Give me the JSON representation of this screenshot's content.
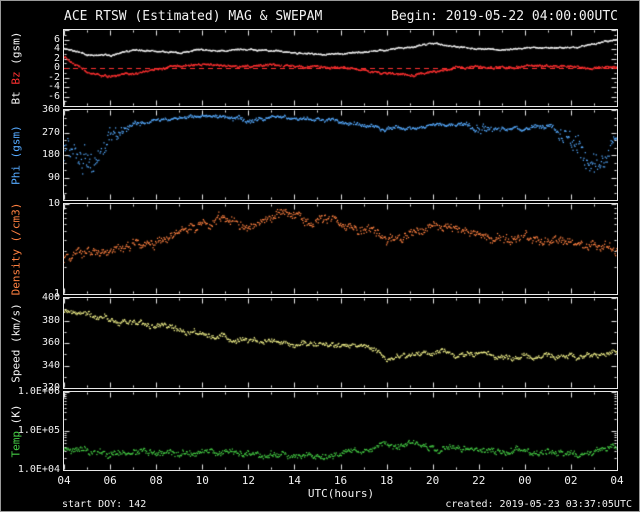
{
  "header": {
    "title": "ACE RTSW (Estimated) MAG & SWEPAM",
    "begin": "Begin: 2019-05-22 04:00:00UTC"
  },
  "footer": {
    "start_doy": "start DOY: 142",
    "created": "created: 2019-05-23 03:37:05UTC"
  },
  "x_axis": {
    "label": "UTC(hours)",
    "range": [
      4,
      28
    ],
    "tick_hours": [
      4,
      6,
      8,
      10,
      12,
      14,
      16,
      18,
      20,
      22,
      24,
      26,
      28
    ],
    "tick_labels": [
      "04",
      "06",
      "08",
      "10",
      "12",
      "14",
      "16",
      "18",
      "20",
      "22",
      "00",
      "02",
      "04"
    ]
  },
  "colors": {
    "background": "#000000",
    "frame": "#e8e8e8",
    "text": "#f2f2f2",
    "bt": "#f0f0f0",
    "bz": "#ff3030",
    "zero_line": "#ff3030",
    "phi": "#55aaff",
    "density": "#ff8040",
    "speed": "#eeee88",
    "temp": "#44cc44"
  },
  "chart_data": [
    {
      "id": "mag",
      "type": "scatter",
      "scale": "linear",
      "ylim": [
        -8,
        8
      ],
      "zero_line": true,
      "yticks": {
        "values": [
          6,
          4,
          2,
          0,
          -2,
          -4,
          -6
        ],
        "labels": [
          "6",
          "4",
          "2",
          "0",
          "-2",
          "-4",
          "-6"
        ],
        "major_step": 2,
        "minor_step": 1
      },
      "ylabel_parts": [
        {
          "text": "Bt",
          "color_key": "bt"
        },
        {
          "text": "Bz",
          "color_key": "bz"
        },
        {
          "text": "(gsm)",
          "color_key": "text"
        }
      ],
      "series": [
        {
          "name": "Bt",
          "color_key": "bt",
          "x_start": 4,
          "x_step": 1,
          "jitter": 0.2,
          "y": [
            4.2,
            2.8,
            2.6,
            3.8,
            3.5,
            3.2,
            3.8,
            3.6,
            3.9,
            3.6,
            3.2,
            2.9,
            3.0,
            3.4,
            3.9,
            4.3,
            5.2,
            4.4,
            4.1,
            3.9,
            4.0,
            4.3,
            4.2,
            5.0,
            6.0
          ]
        },
        {
          "name": "Bz",
          "color_key": "bz",
          "x_start": 4,
          "x_step": 1,
          "jitter": 0.3,
          "y": [
            2.2,
            -0.8,
            -1.8,
            -1.2,
            -0.3,
            0.4,
            0.8,
            0.3,
            0.5,
            0.7,
            0.3,
            0.0,
            0.2,
            -0.4,
            -1.2,
            -1.5,
            -0.8,
            0.0,
            0.3,
            0.0,
            0.2,
            0.4,
            0.3,
            -0.2,
            0.3
          ]
        }
      ]
    },
    {
      "id": "phi",
      "type": "scatter",
      "scale": "linear",
      "ylim": [
        0,
        360
      ],
      "zero_line": false,
      "yticks": {
        "values": [
          360,
          270,
          180,
          90
        ],
        "labels": [
          "360",
          "270",
          "180",
          "90"
        ],
        "major_step": 90,
        "minor_step": 30
      },
      "ylabel_parts": [
        {
          "text": "Phi",
          "color_key": "phi"
        },
        {
          "text": "(gsm)",
          "color_key": "phi"
        }
      ],
      "series": [
        {
          "name": "Phi",
          "color_key": "phi",
          "x_start": 4,
          "x_step": 1,
          "jitter": [
            60,
            70,
            40,
            15,
            8,
            8,
            8,
            8,
            15,
            8,
            8,
            10,
            10,
            12,
            10,
            8,
            8,
            8,
            25,
            10,
            10,
            10,
            50,
            70,
            30
          ],
          "y": [
            200,
            150,
            250,
            300,
            320,
            330,
            335,
            330,
            320,
            330,
            325,
            320,
            310,
            300,
            280,
            285,
            300,
            295,
            290,
            285,
            290,
            295,
            240,
            160,
            280
          ]
        }
      ]
    },
    {
      "id": "density",
      "type": "scatter",
      "scale": "log",
      "ylim": [
        1,
        10
      ],
      "zero_line": false,
      "yticks": {
        "values": [
          10,
          1
        ],
        "labels": [
          "10",
          "1"
        ]
      },
      "ylabel_parts": [
        {
          "text": "Density",
          "color_key": "density"
        },
        {
          "text": "(/cm3)",
          "color_key": "density"
        }
      ],
      "series": [
        {
          "name": "Density",
          "color_key": "density",
          "x_start": 4,
          "x_step": 1,
          "jitter": 0.07,
          "y": [
            2.5,
            2.8,
            3.0,
            3.5,
            4.0,
            5.0,
            6.5,
            7.0,
            6.0,
            6.5,
            7.0,
            6.5,
            6.0,
            5.5,
            4.0,
            4.5,
            5.5,
            5.0,
            4.5,
            4.0,
            4.0,
            3.8,
            3.5,
            3.5,
            3.2
          ]
        }
      ]
    },
    {
      "id": "speed",
      "type": "scatter",
      "scale": "linear",
      "ylim": [
        320,
        400
      ],
      "zero_line": false,
      "yticks": {
        "values": [
          400,
          380,
          360,
          340,
          320
        ],
        "labels": [
          "400",
          "380",
          "360",
          "340",
          "320"
        ],
        "major_step": 20,
        "minor_step": 10
      },
      "ylabel_parts": [
        {
          "text": "Speed",
          "color_key": "text"
        },
        {
          "text": "(km/s)",
          "color_key": "text"
        }
      ],
      "series": [
        {
          "name": "Speed",
          "color_key": "speed",
          "x_start": 4,
          "x_step": 1,
          "jitter": 3,
          "y": [
            388,
            385,
            382,
            378,
            375,
            372,
            368,
            364,
            362,
            360,
            362,
            360,
            358,
            356,
            346,
            350,
            352,
            348,
            350,
            348,
            346,
            350,
            348,
            350,
            352
          ]
        }
      ]
    },
    {
      "id": "temp",
      "type": "scatter",
      "scale": "log",
      "ylim": [
        10000,
        1000000
      ],
      "zero_line": false,
      "yticks": {
        "values": [
          1000000,
          100000,
          10000
        ],
        "labels": [
          "1.0E+06",
          "1.0E+05",
          "1.0E+04"
        ]
      },
      "ylabel_parts": [
        {
          "text": "Temp",
          "color_key": "temp"
        },
        {
          "text": "(K)",
          "color_key": "text"
        }
      ],
      "series": [
        {
          "name": "Temp",
          "color_key": "temp",
          "x_start": 4,
          "x_step": 1,
          "jitter": 0.11,
          "y": [
            35000,
            30000,
            25000,
            30000,
            28000,
            25000,
            30000,
            28000,
            25000,
            26000,
            24000,
            25000,
            26000,
            28000,
            50000,
            45000,
            40000,
            35000,
            32000,
            30000,
            30000,
            32000,
            30000,
            30000,
            35000
          ]
        }
      ]
    }
  ]
}
